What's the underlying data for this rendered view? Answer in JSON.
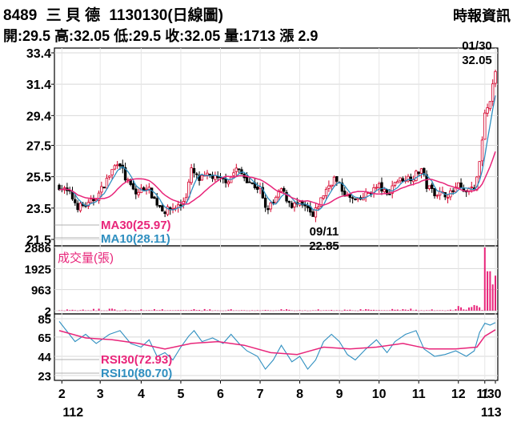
{
  "header": {
    "stock_code": "8489",
    "stock_name": "三 貝 德",
    "date_title": "1130130(日線圖)",
    "source": "時報資訊"
  },
  "ohlc": {
    "open_label": "開:",
    "open": "29.5",
    "high_label": "高:",
    "high": "32.05",
    "low_label": "低:",
    "low": "29.5",
    "close_label": "收:",
    "close": "32.05",
    "volume_label": "量:",
    "volume": "1713",
    "change_label": "漲",
    "change": "2.9"
  },
  "chart_data": {
    "type": "candlestick",
    "x_tick_labels": [
      "2",
      "3",
      "4",
      "5",
      "6",
      "7",
      "8",
      "9",
      "10",
      "11",
      "12",
      "1",
      "1/30"
    ],
    "x_year_labels": [
      "112",
      "113"
    ],
    "price_panel": {
      "y_ticks": [
        "33.4",
        "31.4",
        "29.4",
        "27.5",
        "25.5",
        "23.5",
        "21.5"
      ],
      "ylim": [
        21.5,
        33.4
      ],
      "legend": [
        "MA30(25.97)",
        "MA10(28.11)"
      ],
      "annotations": [
        {
          "date": "01/30",
          "value": "32.05"
        },
        {
          "date": "09/11",
          "value": "22.85"
        }
      ]
    },
    "volume_panel": {
      "label": "成交量(張)",
      "y_ticks": [
        "2886",
        "1925",
        "963",
        "2"
      ],
      "ylim": [
        2,
        2886
      ]
    },
    "rsi_panel": {
      "y_ticks": [
        "85",
        "65",
        "44",
        "23"
      ],
      "ylim": [
        23,
        85
      ],
      "legend": [
        "RSI30(72.93)",
        "RSI10(80.70)"
      ]
    },
    "series": [
      {
        "name": "MA30",
        "color": "#e8257a"
      },
      {
        "name": "MA10",
        "color": "#2f8fc0"
      },
      {
        "name": "RSI30",
        "color": "#e8257a"
      },
      {
        "name": "RSI10",
        "color": "#2f8fc0"
      }
    ],
    "prices": [
      [
        0,
        24.9
      ],
      [
        8,
        24.4
      ],
      [
        14,
        23.6
      ],
      [
        22,
        23.7
      ],
      [
        30,
        24.4
      ],
      [
        40,
        25.9
      ],
      [
        45,
        26.6
      ],
      [
        50,
        25.4
      ],
      [
        58,
        24.4
      ],
      [
        66,
        24.9
      ],
      [
        74,
        23.8
      ],
      [
        80,
        23.3
      ],
      [
        86,
        23.5
      ],
      [
        92,
        23.7
      ],
      [
        96,
        24.3
      ],
      [
        100,
        25.9
      ],
      [
        106,
        25.3
      ],
      [
        114,
        25.6
      ],
      [
        120,
        25.3
      ],
      [
        128,
        25.3
      ],
      [
        134,
        26.0
      ],
      [
        140,
        25.5
      ],
      [
        146,
        25.0
      ],
      [
        152,
        24.7
      ],
      [
        156,
        23.4
      ],
      [
        162,
        23.8
      ],
      [
        168,
        24.7
      ],
      [
        172,
        24.1
      ],
      [
        176,
        23.7
      ],
      [
        182,
        23.7
      ],
      [
        188,
        23.4
      ],
      [
        192,
        22.9
      ],
      [
        196,
        23.7
      ],
      [
        202,
        24.7
      ],
      [
        208,
        25.4
      ],
      [
        212,
        24.9
      ],
      [
        218,
        24.2
      ],
      [
        226,
        23.9
      ],
      [
        234,
        24.5
      ],
      [
        242,
        24.9
      ],
      [
        248,
        24.3
      ],
      [
        254,
        25.2
      ],
      [
        262,
        25.4
      ],
      [
        268,
        25.5
      ],
      [
        274,
        26.0
      ],
      [
        278,
        24.9
      ],
      [
        284,
        24.5
      ],
      [
        290,
        24.4
      ],
      [
        296,
        24.4
      ],
      [
        302,
        24.9
      ],
      [
        308,
        24.5
      ],
      [
        314,
        24.7
      ],
      [
        318,
        26.4
      ],
      [
        322,
        29.4
      ],
      [
        326,
        30.4
      ],
      [
        330,
        32.05
      ]
    ],
    "volume_peaks": [
      [
        322,
        2886
      ],
      [
        325,
        1800
      ],
      [
        327,
        1200
      ],
      [
        329,
        1600
      ],
      [
        330,
        1713
      ]
    ],
    "rsi10": [
      [
        0,
        82
      ],
      [
        12,
        60
      ],
      [
        20,
        68
      ],
      [
        28,
        58
      ],
      [
        38,
        68
      ],
      [
        46,
        72
      ],
      [
        54,
        58
      ],
      [
        62,
        54
      ],
      [
        68,
        62
      ],
      [
        74,
        44
      ],
      [
        80,
        48
      ],
      [
        86,
        40
      ],
      [
        92,
        54
      ],
      [
        98,
        66
      ],
      [
        102,
        72
      ],
      [
        108,
        60
      ],
      [
        116,
        64
      ],
      [
        124,
        58
      ],
      [
        130,
        68
      ],
      [
        136,
        58
      ],
      [
        142,
        50
      ],
      [
        150,
        44
      ],
      [
        156,
        30
      ],
      [
        162,
        40
      ],
      [
        168,
        56
      ],
      [
        176,
        38
      ],
      [
        182,
        44
      ],
      [
        188,
        30
      ],
      [
        194,
        40
      ],
      [
        200,
        60
      ],
      [
        206,
        68
      ],
      [
        212,
        60
      ],
      [
        218,
        46
      ],
      [
        224,
        40
      ],
      [
        232,
        52
      ],
      [
        240,
        62
      ],
      [
        248,
        48
      ],
      [
        254,
        60
      ],
      [
        262,
        68
      ],
      [
        270,
        72
      ],
      [
        276,
        52
      ],
      [
        284,
        44
      ],
      [
        292,
        46
      ],
      [
        300,
        50
      ],
      [
        308,
        44
      ],
      [
        314,
        50
      ],
      [
        318,
        70
      ],
      [
        322,
        80
      ],
      [
        326,
        78
      ],
      [
        330,
        80.7
      ]
    ],
    "rsi30": [
      [
        0,
        72
      ],
      [
        20,
        64
      ],
      [
        40,
        62
      ],
      [
        60,
        58
      ],
      [
        80,
        52
      ],
      [
        100,
        58
      ],
      [
        120,
        60
      ],
      [
        140,
        56
      ],
      [
        160,
        48
      ],
      [
        180,
        46
      ],
      [
        200,
        54
      ],
      [
        220,
        52
      ],
      [
        240,
        54
      ],
      [
        260,
        58
      ],
      [
        280,
        52
      ],
      [
        300,
        52
      ],
      [
        316,
        54
      ],
      [
        322,
        66
      ],
      [
        330,
        72.93
      ]
    ]
  }
}
